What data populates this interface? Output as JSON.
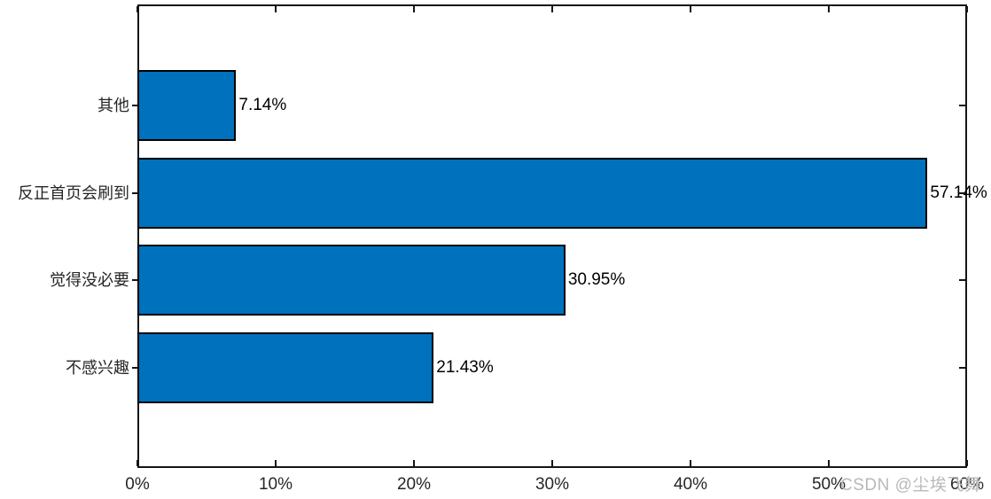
{
  "watermark": "CSDN @尘埃飞舞",
  "colors": {
    "bar": "#0072BD",
    "bar_edge": "#000000",
    "axis": "#151515",
    "tick_label": "#262626",
    "value_label": "#000000",
    "watermark": "#b9b9b9"
  },
  "chart_data": {
    "type": "bar",
    "orientation": "horizontal",
    "title": "",
    "xlabel": "",
    "ylabel": "",
    "grid": false,
    "legend": null,
    "categories": [
      "其他",
      "反正首页会刷到",
      "觉得没必要",
      "不感兴趣"
    ],
    "values": [
      7.14,
      57.14,
      30.95,
      21.43
    ],
    "value_labels": [
      "7.14%",
      "57.14%",
      "30.95%",
      "21.43%"
    ],
    "xlim": [
      0,
      60
    ],
    "x_ticks": [
      0,
      10,
      20,
      30,
      40,
      50,
      60
    ],
    "x_tick_labels": [
      "0%",
      "10%",
      "20%",
      "30%",
      "40%",
      "50%",
      "60%"
    ],
    "bar_color": "#0072BD"
  }
}
